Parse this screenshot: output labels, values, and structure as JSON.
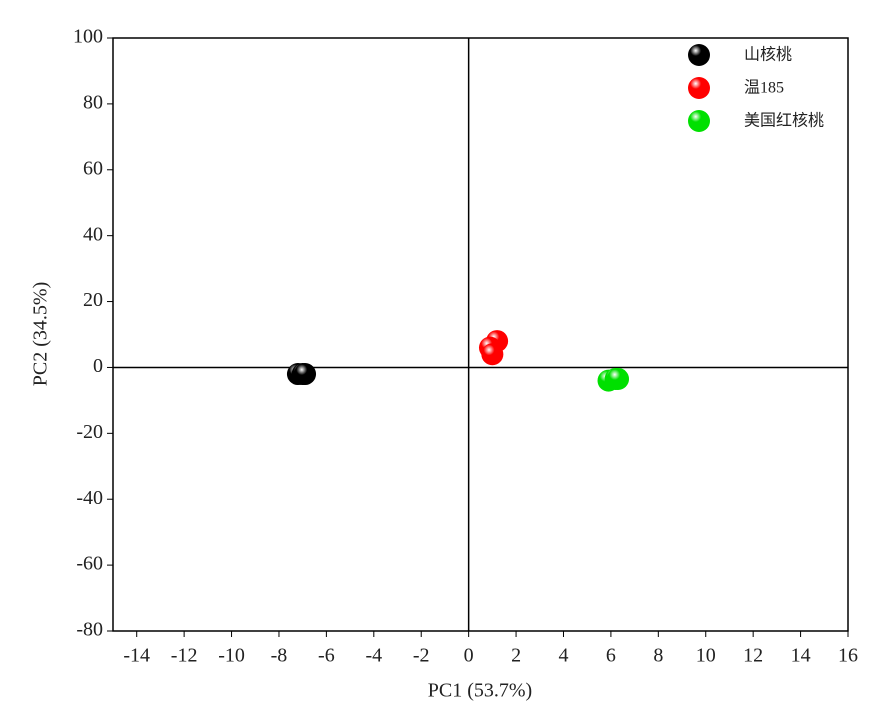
{
  "chart_data": {
    "type": "scatter",
    "x_label": "PC1 (53.7%)",
    "y_label": "PC2 (34.5%)",
    "xlim": [
      -15,
      16
    ],
    "xticks": [
      -14,
      -12,
      -10,
      -8,
      -6,
      -4,
      -2,
      0,
      2,
      4,
      6,
      8,
      10,
      12,
      14,
      16
    ],
    "ylim": [
      -80,
      100
    ],
    "yticks": [
      -80,
      -60,
      -40,
      -20,
      0,
      20,
      40,
      60,
      80,
      100
    ],
    "zero_lines": true,
    "legend": "upper-right",
    "series": [
      {
        "name": "山核桃",
        "color": "#000000",
        "x": [
          -7.2,
          -7.0,
          -6.9
        ],
        "values": [
          -2,
          -2,
          -2
        ]
      },
      {
        "name": "温185",
        "color": "#ff0000",
        "x": [
          1.2,
          0.9,
          1.0
        ],
        "values": [
          8,
          6,
          4
        ]
      },
      {
        "name": "美国红核桃",
        "color": "#00e000",
        "x": [
          5.9,
          6.2,
          6.3
        ],
        "values": [
          -4,
          -3.5,
          -3.5
        ]
      }
    ]
  }
}
